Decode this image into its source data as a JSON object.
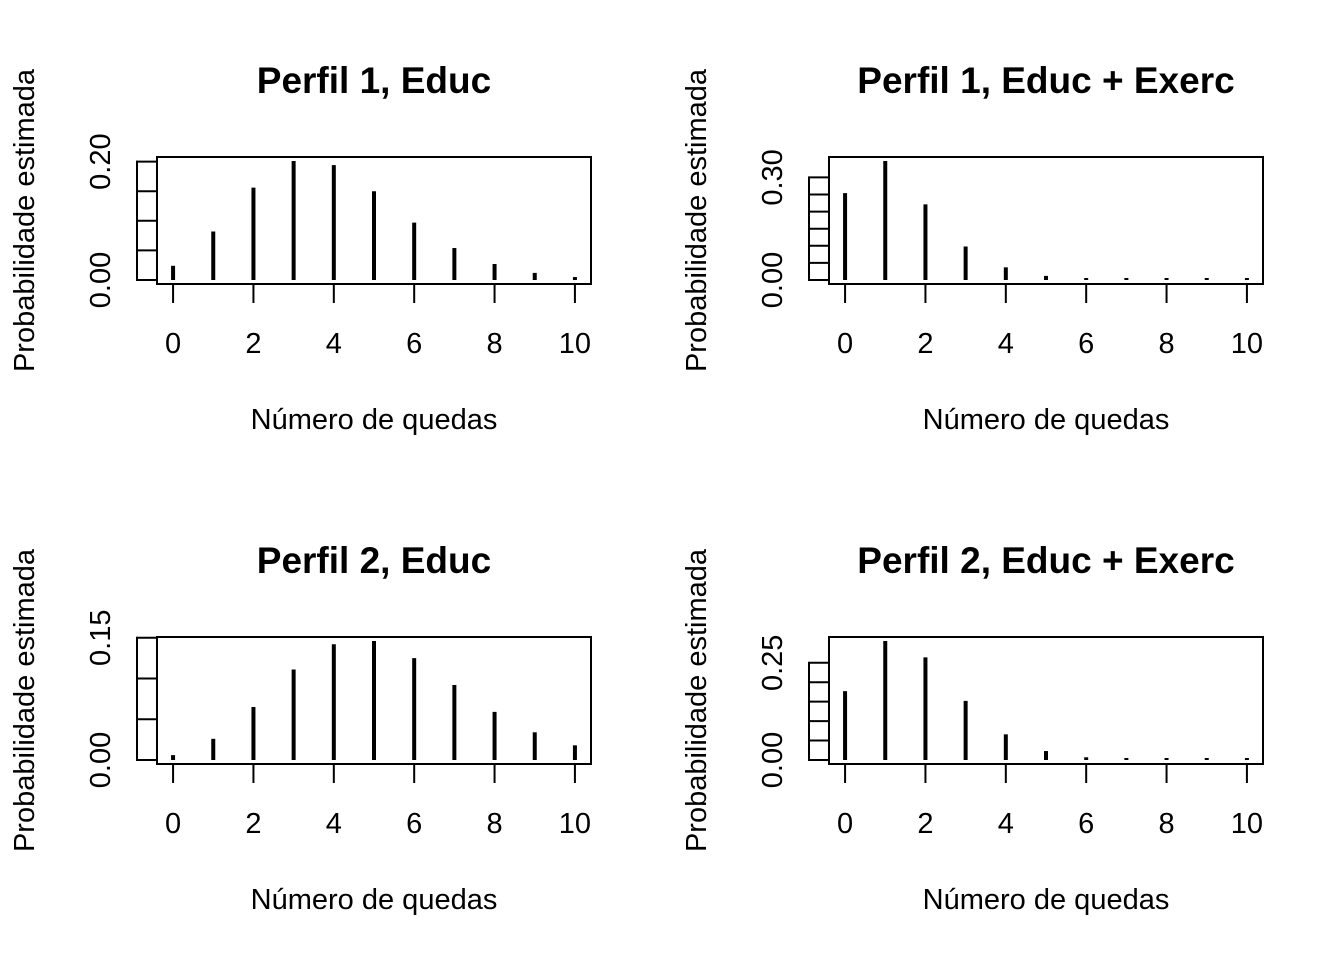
{
  "chart_data": [
    {
      "type": "bar",
      "title": "Perfil 1, Educ",
      "xlabel": "Número de quedas",
      "ylabel": "Probabilidade estimada",
      "x": [
        0,
        1,
        2,
        3,
        4,
        5,
        6,
        7,
        8,
        9,
        10
      ],
      "values": [
        0.024,
        0.082,
        0.156,
        0.201,
        0.194,
        0.15,
        0.097,
        0.054,
        0.027,
        0.012,
        0.005
      ],
      "ylim": [
        0,
        0.201
      ],
      "xlim": [
        -0.4,
        10.4
      ],
      "y_ticks": [
        0,
        0.05,
        0.1,
        0.15,
        0.2
      ],
      "y_tick_labels": [
        "0.00",
        "",
        "",
        "",
        "0.20"
      ],
      "x_ticks": [
        0,
        2,
        4,
        6,
        8,
        10
      ],
      "x_tick_labels": [
        "0",
        "2",
        "4",
        "6",
        "8",
        "10"
      ],
      "grid": false,
      "legend": "none"
    },
    {
      "type": "bar",
      "title": "Perfil 1, Educ + Exerc",
      "xlabel": "Número de quedas",
      "ylabel": "Probabilidade estimada",
      "x": [
        0,
        1,
        2,
        3,
        4,
        5,
        6,
        7,
        8,
        9,
        10
      ],
      "values": [
        0.254,
        0.348,
        0.221,
        0.098,
        0.037,
        0.012,
        0.004,
        0.001,
        0.0005,
        0.0002,
        0.0001
      ],
      "ylim": [
        0,
        0.348
      ],
      "xlim": [
        -0.4,
        10.4
      ],
      "y_ticks": [
        0,
        0.05,
        0.1,
        0.15,
        0.2,
        0.25,
        0.3
      ],
      "y_tick_labels": [
        "0.00",
        "",
        "",
        "",
        "",
        "",
        "0.30"
      ],
      "x_ticks": [
        0,
        2,
        4,
        6,
        8,
        10
      ],
      "x_tick_labels": [
        "0",
        "2",
        "4",
        "6",
        "8",
        "10"
      ],
      "grid": false,
      "legend": "none"
    },
    {
      "type": "bar",
      "title": "Perfil 2, Educ",
      "xlabel": "Número de quedas",
      "ylabel": "Probabilidade estimada",
      "x": [
        0,
        1,
        2,
        3,
        4,
        5,
        6,
        7,
        8,
        9,
        10
      ],
      "values": [
        0.006,
        0.026,
        0.065,
        0.111,
        0.142,
        0.146,
        0.125,
        0.092,
        0.059,
        0.034,
        0.018
      ],
      "ylim": [
        0,
        0.146
      ],
      "xlim": [
        -0.4,
        10.4
      ],
      "y_ticks": [
        0,
        0.05,
        0.1,
        0.15
      ],
      "y_tick_labels": [
        "0.00",
        "",
        "",
        "0.15"
      ],
      "x_ticks": [
        0,
        2,
        4,
        6,
        8,
        10
      ],
      "x_tick_labels": [
        "0",
        "2",
        "4",
        "6",
        "8",
        "10"
      ],
      "grid": false,
      "legend": "none"
    },
    {
      "type": "bar",
      "title": "Perfil 2, Educ + Exerc",
      "xlabel": "Número de quedas",
      "ylabel": "Probabilidade estimada",
      "x": [
        0,
        1,
        2,
        3,
        4,
        5,
        6,
        7,
        8,
        9,
        10
      ],
      "values": [
        0.177,
        0.306,
        0.264,
        0.152,
        0.066,
        0.023,
        0.007,
        0.002,
        0.0005,
        0.0001,
        2e-05
      ],
      "ylim": [
        0,
        0.306
      ],
      "xlim": [
        -0.4,
        10.4
      ],
      "y_ticks": [
        0,
        0.05,
        0.1,
        0.15,
        0.2,
        0.25
      ],
      "y_tick_labels": [
        "0.00",
        "",
        "",
        "",
        "",
        "0.25"
      ],
      "x_ticks": [
        0,
        2,
        4,
        6,
        8,
        10
      ],
      "x_tick_labels": [
        "0",
        "2",
        "4",
        "6",
        "8",
        "10"
      ],
      "grid": false,
      "legend": "none"
    }
  ],
  "colors": {
    "bars": "#000000",
    "axes": "#000000",
    "background": "#ffffff"
  }
}
